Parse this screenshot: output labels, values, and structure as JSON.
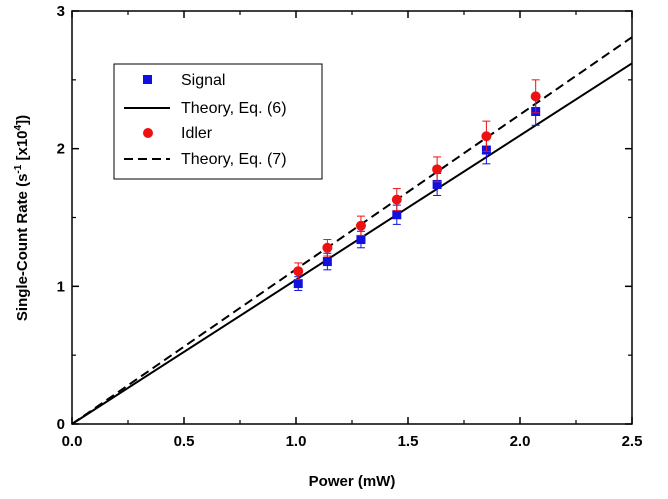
{
  "chart_data": {
    "type": "scatter",
    "title": "",
    "xlabel": "Power (mW)",
    "ylabel": {
      "base": "Single-Count Rate (s",
      "exp1": "-1",
      "mid": " [x10",
      "exp2": "4",
      "end": "])"
    },
    "xlim": [
      0,
      2.5
    ],
    "ylim": [
      0,
      3
    ],
    "xticks": [
      "0.0",
      "0.5",
      "1.0",
      "1.5",
      "2.0",
      "2.5"
    ],
    "yticks": [
      "0",
      "1",
      "2",
      "3"
    ],
    "grid": false,
    "legend_position": "top-left",
    "series": [
      {
        "name": "Signal",
        "kind": "points",
        "marker": "square",
        "color": "#1010e0",
        "x": [
          1.01,
          1.14,
          1.29,
          1.45,
          1.63,
          1.85,
          2.07
        ],
        "y": [
          1.02,
          1.18,
          1.34,
          1.52,
          1.74,
          1.99,
          2.27
        ],
        "yerr": [
          0.05,
          0.06,
          0.06,
          0.07,
          0.08,
          0.1,
          0.1
        ]
      },
      {
        "name": "Theory, Eq. (6)",
        "kind": "line",
        "dash": "solid",
        "color": "#000000",
        "x": [
          0,
          2.5
        ],
        "y": [
          0,
          2.62
        ]
      },
      {
        "name": "Idler",
        "kind": "points",
        "marker": "circle",
        "color": "#ee1111",
        "x": [
          1.01,
          1.14,
          1.29,
          1.45,
          1.63,
          1.85,
          2.07
        ],
        "y": [
          1.11,
          1.28,
          1.44,
          1.63,
          1.85,
          2.09,
          2.38
        ],
        "yerr": [
          0.06,
          0.06,
          0.07,
          0.08,
          0.09,
          0.11,
          0.12
        ]
      },
      {
        "name": "Theory, Eq. (7)",
        "kind": "line",
        "dash": "dashed",
        "color": "#000000",
        "x": [
          0,
          2.5
        ],
        "y": [
          0,
          2.81
        ]
      }
    ]
  }
}
